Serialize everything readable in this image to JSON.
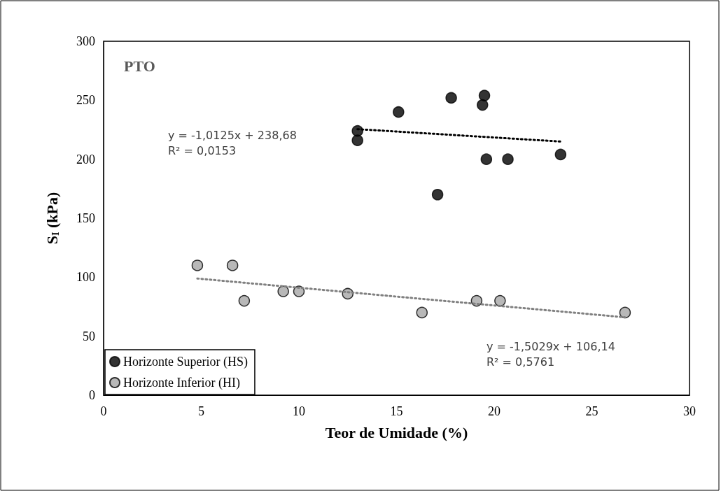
{
  "chart_data": {
    "type": "scatter",
    "title": "PTO",
    "xlabel": "Teor de Umidade (%)",
    "ylabel": "S$_{I}$ (kPa)",
    "xlim": [
      0,
      30
    ],
    "xticks": [
      0,
      5,
      10,
      15,
      20,
      25,
      30
    ],
    "ylim": [
      0,
      300
    ],
    "yticks": [
      0,
      50,
      100,
      150,
      200,
      250,
      300
    ],
    "grid": false,
    "legend": "bottom left",
    "marker": "circle",
    "annotations": [
      "y = -1,0125x + 238,68\nR² = 0,0153",
      "y = -1,5029x + 106,14\nR² = 0,5761"
    ],
    "series": [
      {
        "name": "Horizonte Superior (HS)",
        "color": "#000000",
        "x": [
          13.0,
          13.0,
          15.1,
          17.8,
          19.4,
          19.5,
          17.1,
          19.6,
          20.7,
          23.4
        ],
        "values": [
          224,
          216,
          240,
          252,
          246,
          254,
          170,
          200,
          200,
          204
        ]
      },
      {
        "name": "Horizonte Inferior (HI)",
        "color": "#a6a6a6",
        "x": [
          4.8,
          6.6,
          7.2,
          9.2,
          10.0,
          12.5,
          16.3,
          19.1,
          20.3,
          26.7
        ],
        "values": [
          110,
          110,
          80,
          88,
          88,
          86,
          70,
          80,
          80,
          70
        ]
      },
      {
        "type": "line",
        "color": "#000000",
        "marker": "none",
        "line_style": "dotted",
        "x": [
          13.0,
          23.4
        ],
        "values": [
          225.5,
          215.0
        ]
      },
      {
        "type": "line",
        "color": "#808080",
        "marker": "none",
        "line_style": "dotted",
        "x": [
          4.8,
          26.7
        ],
        "values": [
          98.9,
          66.0
        ]
      }
    ]
  }
}
